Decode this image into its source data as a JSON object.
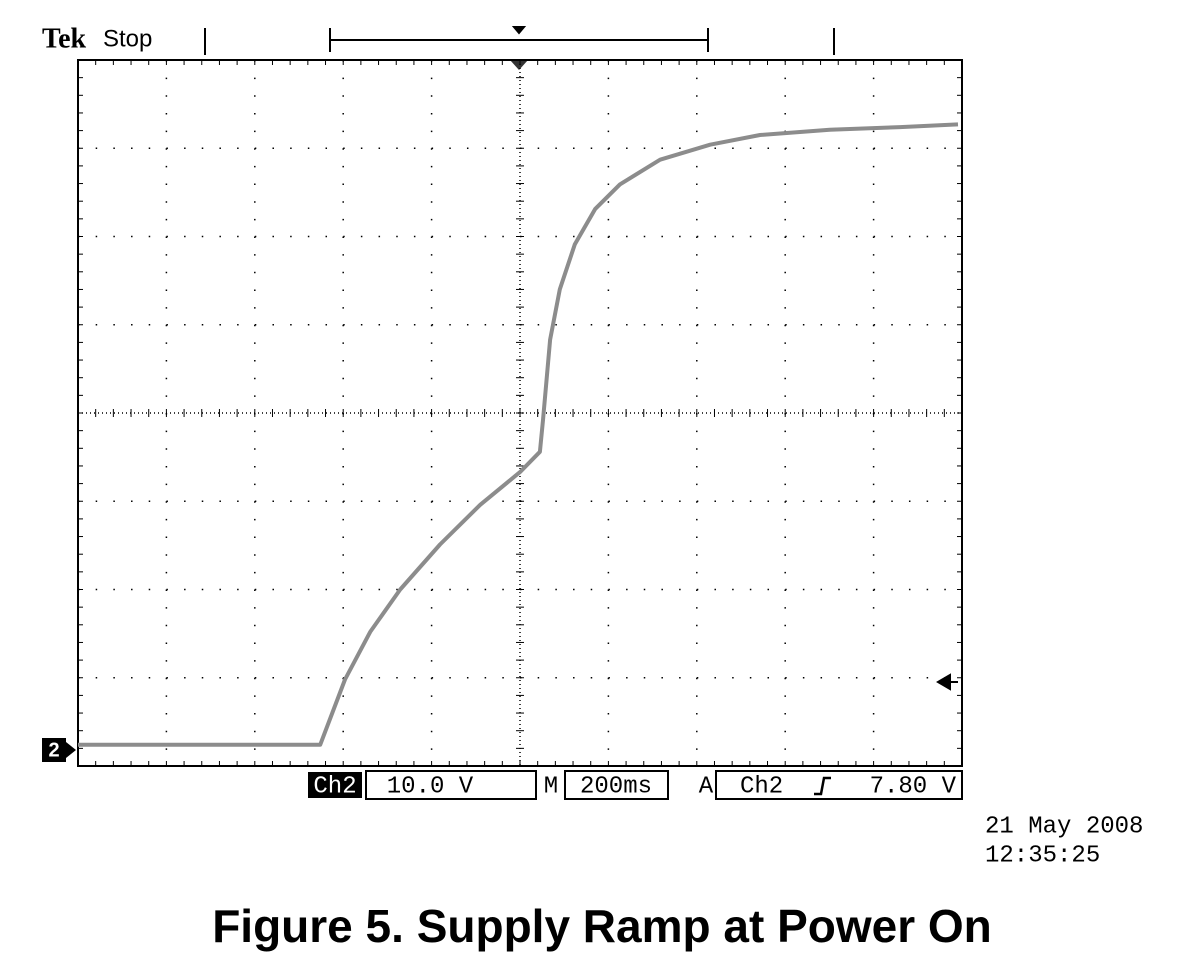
{
  "chart_data": {
    "type": "line",
    "brand": "Tek",
    "status": "Stop",
    "channel_marker": "2",
    "channel": "Ch2",
    "scale": "10.0 V",
    "time_label": "M",
    "timebase": "200ms",
    "trigger_label": "A",
    "trigger_source": "Ch2",
    "trigger_level": "7.80 V",
    "date": "21 May 2008",
    "time": "12:35:25",
    "title": "Figure 5. Supply Ramp at Power On",
    "x": [
      -1000,
      -452,
      -396,
      -339,
      -271,
      -181,
      -90,
      0,
      45,
      52,
      68,
      90,
      124,
      170,
      226,
      317,
      430,
      543,
      701,
      860,
      991
    ],
    "series": [
      {
        "color": "#8c8c8c",
        "values": [
          0,
          0,
          7.4,
          12.8,
          17.6,
          22.7,
          27.2,
          30.9,
          33.2,
          36.8,
          45.9,
          51.6,
          56.7,
          60.7,
          63.5,
          66.3,
          68.0,
          69.1,
          69.7,
          70.0,
          70.3
        ]
      }
    ],
    "xlim": [
      -1000,
      1000
    ],
    "ylim": [
      -2.4,
      77.6
    ],
    "grid": true
  }
}
